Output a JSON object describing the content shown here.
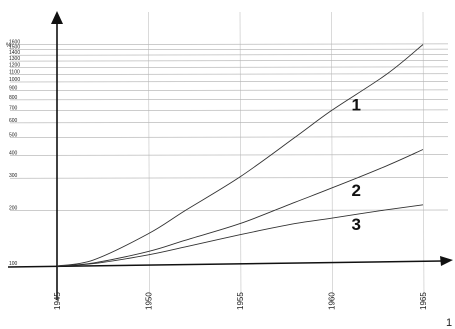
{
  "chart_data": {
    "type": "line",
    "title": "",
    "xlabel": "",
    "ylabel": "",
    "y_unit": "%",
    "y_scale": "log",
    "x_ticks": [
      "1945",
      "1950",
      "1955",
      "1960",
      "1965"
    ],
    "y_ticks": [
      100,
      200,
      300,
      400,
      500,
      600,
      700,
      800,
      900,
      1000,
      1100,
      1200,
      1300,
      1400,
      1500,
      1600
    ],
    "xlim": [
      1944.5,
      1967
    ],
    "ylim": [
      100,
      1600
    ],
    "grid": true,
    "legend": "labels on curves",
    "series": [
      {
        "name": "1",
        "x": [
          1945,
          1947,
          1950,
          1952,
          1955,
          1958,
          1960,
          1963,
          1965
        ],
        "values": [
          100,
          108,
          150,
          200,
          305,
          500,
          700,
          1100,
          1600
        ]
      },
      {
        "name": "2",
        "x": [
          1945,
          1947,
          1950,
          1952,
          1955,
          1958,
          1960,
          1963,
          1965
        ],
        "values": [
          100,
          104,
          120,
          138,
          170,
          222,
          265,
          350,
          430
        ]
      },
      {
        "name": "3",
        "x": [
          1945,
          1947,
          1950,
          1952,
          1955,
          1958,
          1960,
          1963,
          1965
        ],
        "values": [
          100,
          103,
          115,
          127,
          148,
          170,
          182,
          202,
          215
        ]
      }
    ]
  },
  "page_number": "1"
}
